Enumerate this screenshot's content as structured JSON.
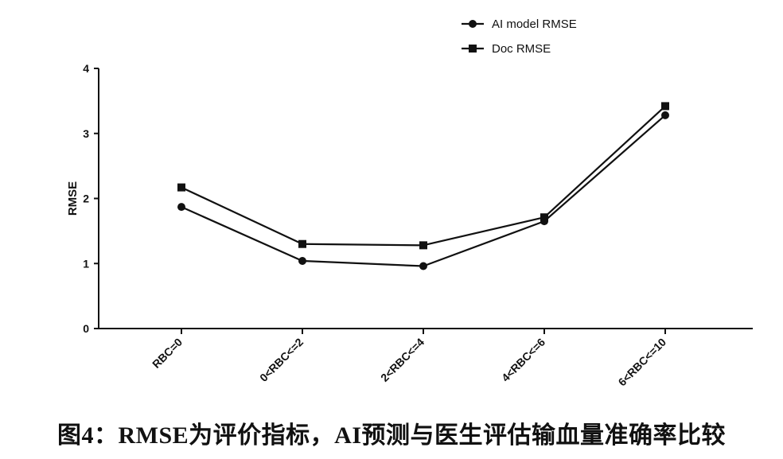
{
  "caption": "图4：RMSE为评价指标，AI预测与医生评估输血量准确率比较",
  "chart_data": {
    "type": "line",
    "categories": [
      "RBC=0",
      "0<RBC<=2",
      "2<RBC<=4",
      "4<RBC<=6",
      "6<RBC<=10"
    ],
    "series": [
      {
        "name": "AI model RMSE",
        "marker": "circle",
        "values": [
          1.87,
          1.04,
          0.96,
          1.65,
          3.28
        ]
      },
      {
        "name": "Doc RMSE",
        "marker": "square",
        "values": [
          2.17,
          1.3,
          1.28,
          1.71,
          3.42
        ]
      }
    ],
    "title": "",
    "xlabel": "",
    "ylabel": "RMSE",
    "ylim": [
      0,
      4
    ],
    "yticks": [
      "0",
      "1",
      "2",
      "3",
      "4"
    ],
    "grid": false,
    "legend_position": "top-right",
    "line_color": "#111111"
  }
}
